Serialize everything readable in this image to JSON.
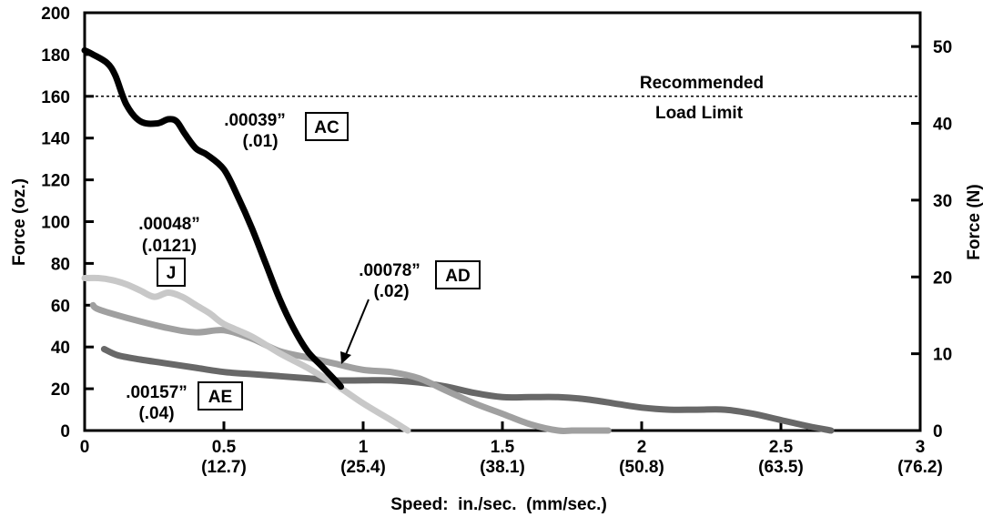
{
  "chart_data": {
    "type": "line",
    "title": "",
    "xlabel": "Speed:  in./sec.  (mm/sec.)",
    "ylabel": "Force (oz.)",
    "y2label": "Force (N)",
    "xlim": [
      0,
      3
    ],
    "ylim": [
      0,
      200
    ],
    "y2lim": [
      0,
      54.4
    ],
    "x_ticks": [
      {
        "value": 0,
        "label": "0",
        "sub": ""
      },
      {
        "value": 0.5,
        "label": "0.5",
        "sub": "(12.7)"
      },
      {
        "value": 1,
        "label": "1",
        "sub": "(25.4)"
      },
      {
        "value": 1.5,
        "label": "1.5",
        "sub": "(38.1)"
      },
      {
        "value": 2,
        "label": "2",
        "sub": "(50.8)"
      },
      {
        "value": 2.5,
        "label": "2.5",
        "sub": "(63.5)"
      },
      {
        "value": 3,
        "label": "3",
        "sub": "(76.2)"
      }
    ],
    "y_ticks": [
      0,
      20,
      40,
      60,
      80,
      100,
      120,
      140,
      160,
      180,
      200
    ],
    "y2_ticks": [
      0,
      10,
      20,
      30,
      40,
      50
    ],
    "grid": false,
    "reference_line": {
      "y": 160,
      "label_line1": "Recommended",
      "label_line2": "Load Limit"
    },
    "series": [
      {
        "name": "AC",
        "size_in": ".00039”",
        "size_mm": "(.01)",
        "color": "#000000",
        "width": 7,
        "x": [
          0,
          0.03,
          0.08,
          0.11,
          0.15,
          0.2,
          0.26,
          0.3,
          0.33,
          0.36,
          0.4,
          0.44,
          0.5,
          0.55,
          0.6,
          0.65,
          0.7,
          0.75,
          0.8,
          0.85,
          0.9,
          0.92
        ],
        "y": [
          182,
          180,
          176,
          170,
          156,
          148,
          147,
          149,
          148,
          142,
          135,
          132,
          125,
          112,
          97,
          80,
          63,
          49,
          38,
          31,
          24,
          21
        ]
      },
      {
        "name": "J",
        "size_in": ".00048”",
        "size_mm": "(.0121)",
        "color": "#c8c8c8",
        "width": 7,
        "x": [
          0,
          0.05,
          0.1,
          0.15,
          0.2,
          0.25,
          0.3,
          0.35,
          0.4,
          0.45,
          0.5,
          0.6,
          0.7,
          0.8,
          0.9,
          1.0,
          1.1,
          1.16
        ],
        "y": [
          73,
          73,
          72,
          70,
          67,
          64,
          66,
          64,
          60,
          56,
          51,
          45,
          37,
          30,
          22,
          13,
          5,
          0
        ]
      },
      {
        "name": "AD",
        "size_in": ".00078”",
        "size_mm": "(.02)",
        "color": "#a0a0a0",
        "width": 7,
        "x": [
          0.03,
          0.05,
          0.15,
          0.3,
          0.4,
          0.5,
          0.6,
          0.7,
          0.8,
          0.9,
          1.0,
          1.1,
          1.2,
          1.3,
          1.4,
          1.5,
          1.6,
          1.7,
          1.75,
          1.8,
          1.88
        ],
        "y": [
          60,
          58,
          54,
          49,
          47,
          48,
          44,
          38,
          35,
          32,
          29,
          28,
          25,
          19,
          13,
          8,
          3,
          0,
          0,
          0,
          0
        ]
      },
      {
        "name": "AE",
        "size_in": ".00157”",
        "size_mm": "(.04)",
        "color": "#686868",
        "width": 7,
        "x": [
          0.07,
          0.12,
          0.2,
          0.3,
          0.4,
          0.5,
          0.6,
          0.7,
          0.8,
          0.9,
          1.0,
          1.1,
          1.2,
          1.3,
          1.4,
          1.5,
          1.6,
          1.7,
          1.8,
          1.9,
          2.0,
          2.1,
          2.2,
          2.3,
          2.4,
          2.5,
          2.6,
          2.68
        ],
        "y": [
          39,
          36,
          34,
          32,
          30,
          28,
          27,
          26,
          25,
          24,
          24,
          24,
          23,
          21,
          18,
          16,
          16,
          16,
          15,
          13,
          11,
          10,
          10,
          10,
          8,
          5,
          2,
          0
        ]
      }
    ]
  }
}
